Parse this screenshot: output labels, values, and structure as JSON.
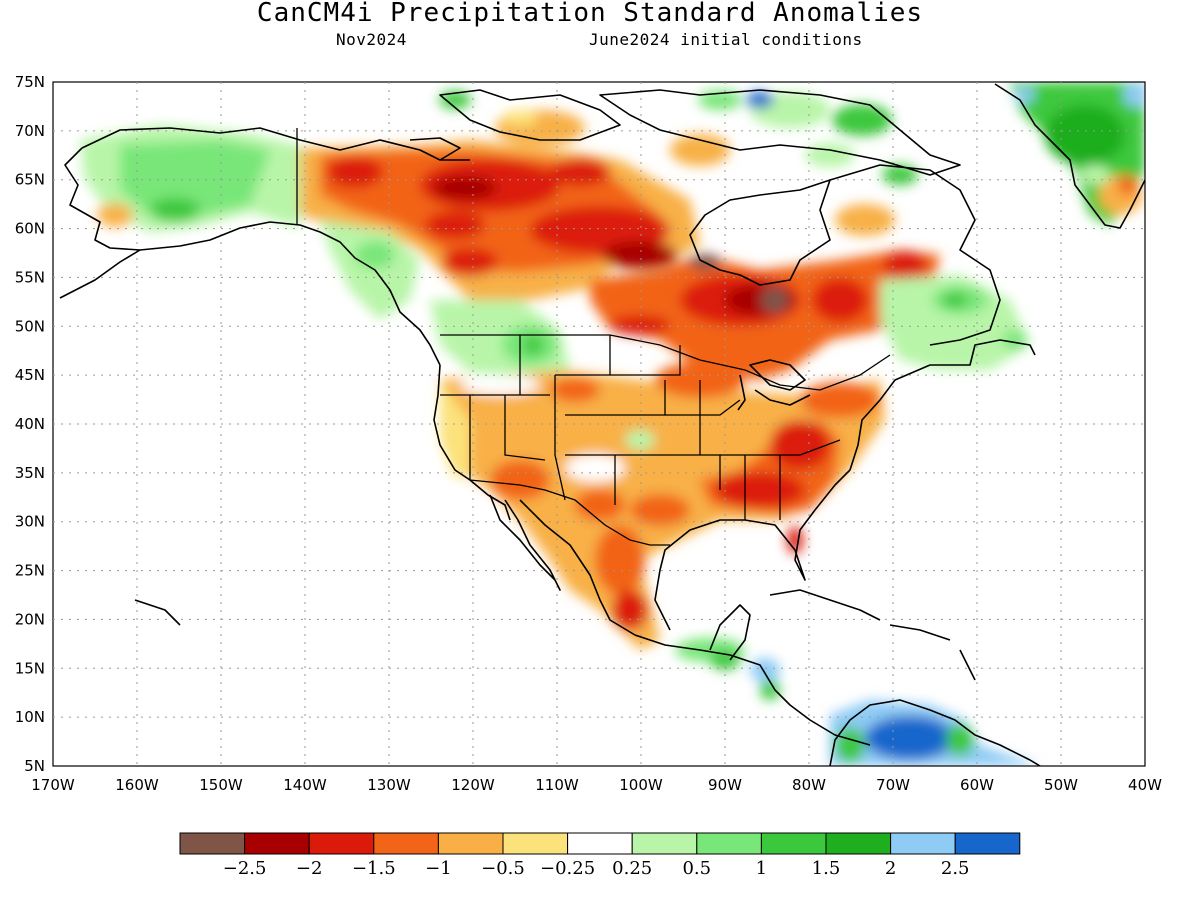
{
  "header": {
    "title": "CanCM4i Precipitation Standard Anomalies",
    "valid_month": "Nov2024",
    "init": "June2024 initial conditions"
  },
  "map": {
    "lon_range": [
      -170,
      -40
    ],
    "lat_range": [
      5,
      75
    ],
    "lat_labels": [
      "75N",
      "70N",
      "65N",
      "60N",
      "55N",
      "50N",
      "45N",
      "40N",
      "35N",
      "30N",
      "25N",
      "20N",
      "15N",
      "10N",
      "5N"
    ],
    "lon_labels": [
      "170W",
      "160W",
      "150W",
      "140W",
      "130W",
      "120W",
      "110W",
      "100W",
      "90W",
      "80W",
      "70W",
      "60W",
      "50W",
      "40W"
    ],
    "grid": "dotted"
  },
  "colorbar": {
    "colors": [
      "#7f5548",
      "#a80000",
      "#dc1a0a",
      "#f26418",
      "#f8b046",
      "#fce27a",
      "#ffffff",
      "#b8f5a8",
      "#78e678",
      "#3cc83c",
      "#1fae1f",
      "#8ecbf5",
      "#1766cc"
    ],
    "labels": [
      "−2.5",
      "−2",
      "−1.5",
      "−1",
      "−0.5",
      "−0.25",
      "0.25",
      "0.5",
      "1",
      "1.5",
      "2",
      "2.5"
    ]
  }
}
